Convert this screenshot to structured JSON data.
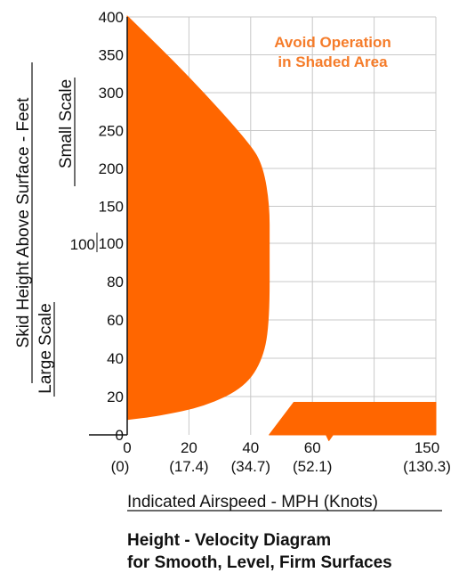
{
  "colors": {
    "shade": "#FF6600",
    "note": "#F57C2A",
    "grid": "#C8C8C8"
  },
  "chart_data": {
    "type": "area",
    "title": "Height - Velocity Diagram",
    "subtitle": "for Smooth, Level, Firm Surfaces",
    "xlabel": "Indicated Airspeed - MPH (Knots)",
    "ylabel": "Skid Height Above Surface - Feet",
    "annotation": [
      "Avoid Operation",
      "in Shaded Area"
    ],
    "small_scale": {
      "label": "Small Scale",
      "ticks": [
        "400",
        "350",
        "300",
        "250",
        "200",
        "150",
        "100"
      ]
    },
    "large_scale": {
      "label": "Large Scale",
      "ticks": [
        "100",
        "80",
        "60",
        "40",
        "20",
        "0"
      ]
    },
    "x_ticks": [
      {
        "mph": "0",
        "knots": "(0)"
      },
      {
        "mph": "20",
        "knots": "(17.4)"
      },
      {
        "mph": "40",
        "knots": "(34.7)"
      },
      {
        "mph": "60",
        "knots": "(52.1)"
      },
      {
        "mph": "150",
        "knots": "(130.3)"
      }
    ],
    "shaded_regions": [
      {
        "name": "low-speed region",
        "boundary": [
          [
            0,
            400
          ],
          [
            20,
            320
          ],
          [
            40,
            230
          ],
          [
            44,
            200
          ],
          [
            46,
            150
          ],
          [
            46,
            100
          ],
          [
            46,
            60
          ],
          [
            44,
            40
          ],
          [
            38,
            25
          ],
          [
            25,
            15
          ],
          [
            10,
            10
          ],
          [
            0,
            8
          ]
        ]
      },
      {
        "name": "high-speed region",
        "boundary": [
          [
            46,
            0
          ],
          [
            54,
            17
          ],
          [
            150,
            17
          ],
          [
            150,
            0
          ],
          [
            75,
            0
          ],
          [
            72,
            -3
          ],
          [
            70,
            0
          ]
        ]
      }
    ]
  }
}
